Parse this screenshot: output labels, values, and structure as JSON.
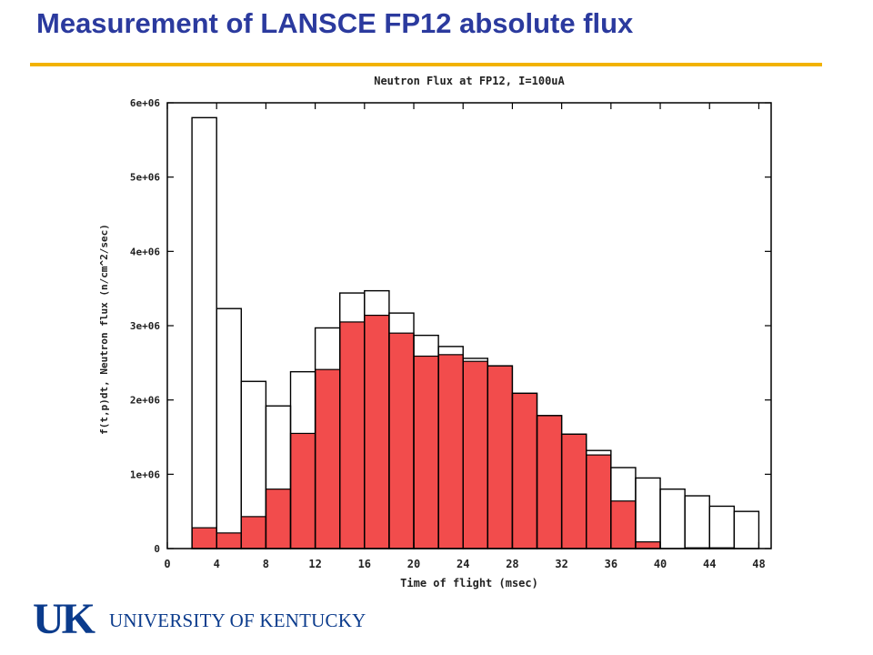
{
  "slide": {
    "title": "Measurement of LANSCE FP12 absolute flux"
  },
  "logo": {
    "mark": "UK",
    "wordmark": "UNIVERSITY OF KENTUCKY",
    "color": "#0b3b8c"
  },
  "colors": {
    "title": "#2b3a9e",
    "rule": "#f2b200",
    "red_bars": "#f24c4c",
    "outline_bars": "#000000"
  },
  "chart_data": {
    "type": "bar",
    "title": "Neutron Flux at FP12, I=100uA",
    "xlabel": "Time of flight (msec)",
    "ylabel": "f(t,p)dt,  Neutron flux (n/cm^2/sec)",
    "xlim": [
      0,
      49
    ],
    "ylim": [
      0,
      6000000
    ],
    "grid": false,
    "xticks": [
      0,
      4,
      8,
      12,
      16,
      20,
      24,
      28,
      32,
      36,
      40,
      44,
      48
    ],
    "yticks": [
      0,
      1000000,
      2000000,
      3000000,
      4000000,
      5000000,
      6000000
    ],
    "xtick_labels": [
      "0",
      "4",
      "8",
      "12",
      "16",
      "20",
      "24",
      "28",
      "32",
      "36",
      "40",
      "44",
      "48"
    ],
    "ytick_labels": [
      "0",
      "1e+06",
      "2e+06",
      "3e+06",
      "4e+06",
      "5e+06",
      "6e+06"
    ],
    "bin_edges": [
      2,
      4,
      6,
      8,
      10,
      12,
      14,
      16,
      18,
      20,
      22,
      24,
      26,
      28,
      30,
      32,
      34,
      36,
      38,
      40,
      42,
      44,
      46,
      48
    ],
    "series": [
      {
        "style": "outline",
        "values": [
          5800000,
          3230000,
          2250000,
          1920000,
          2380000,
          2970000,
          3440000,
          3470000,
          3170000,
          2870000,
          2720000,
          2560000,
          2460000,
          2090000,
          1790000,
          1540000,
          1320000,
          1090000,
          950000,
          800000,
          710000,
          570000,
          500000
        ]
      },
      {
        "style": "filled",
        "values": [
          280000,
          210000,
          430000,
          800000,
          1550000,
          2410000,
          3050000,
          3140000,
          2900000,
          2590000,
          2610000,
          2520000,
          2460000,
          2090000,
          1790000,
          1540000,
          1260000,
          640000,
          90000,
          0,
          10000,
          10000,
          0
        ]
      }
    ]
  }
}
